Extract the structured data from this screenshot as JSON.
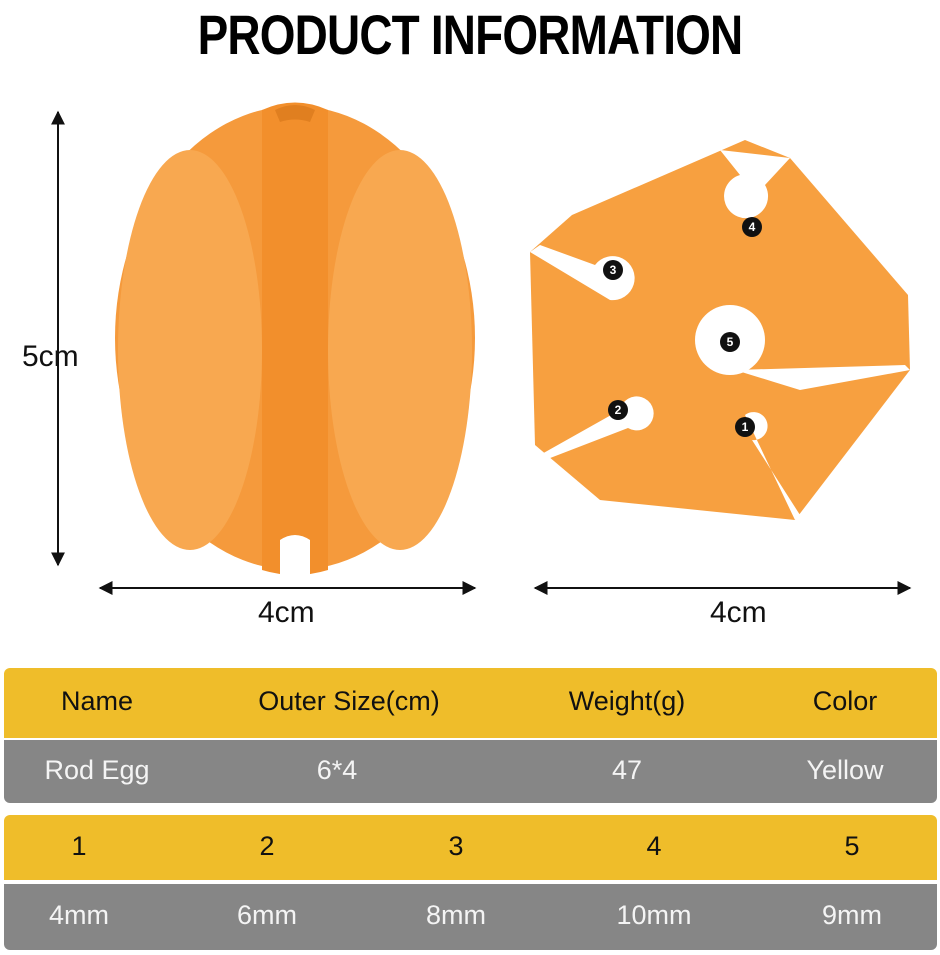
{
  "title": "PRODUCT INFORMATION",
  "dimensions": {
    "egg_height": "5cm",
    "egg_width": "4cm",
    "star_width": "4cm"
  },
  "hole_labels": [
    "1",
    "2",
    "3",
    "4",
    "5"
  ],
  "colors": {
    "product": "#f7a040",
    "header": "#efbd2a",
    "row": "#868686"
  },
  "table1": {
    "headers": [
      "Name",
      "Outer Size(cm)",
      "Weight(g)",
      "Color"
    ],
    "values": [
      "Rod Egg",
      "6*4",
      "47",
      "Yellow"
    ]
  },
  "table2": {
    "headers": [
      "1",
      "2",
      "3",
      "4",
      "5"
    ],
    "values": [
      "4mm",
      "6mm",
      "8mm",
      "10mm",
      "9mm"
    ]
  }
}
